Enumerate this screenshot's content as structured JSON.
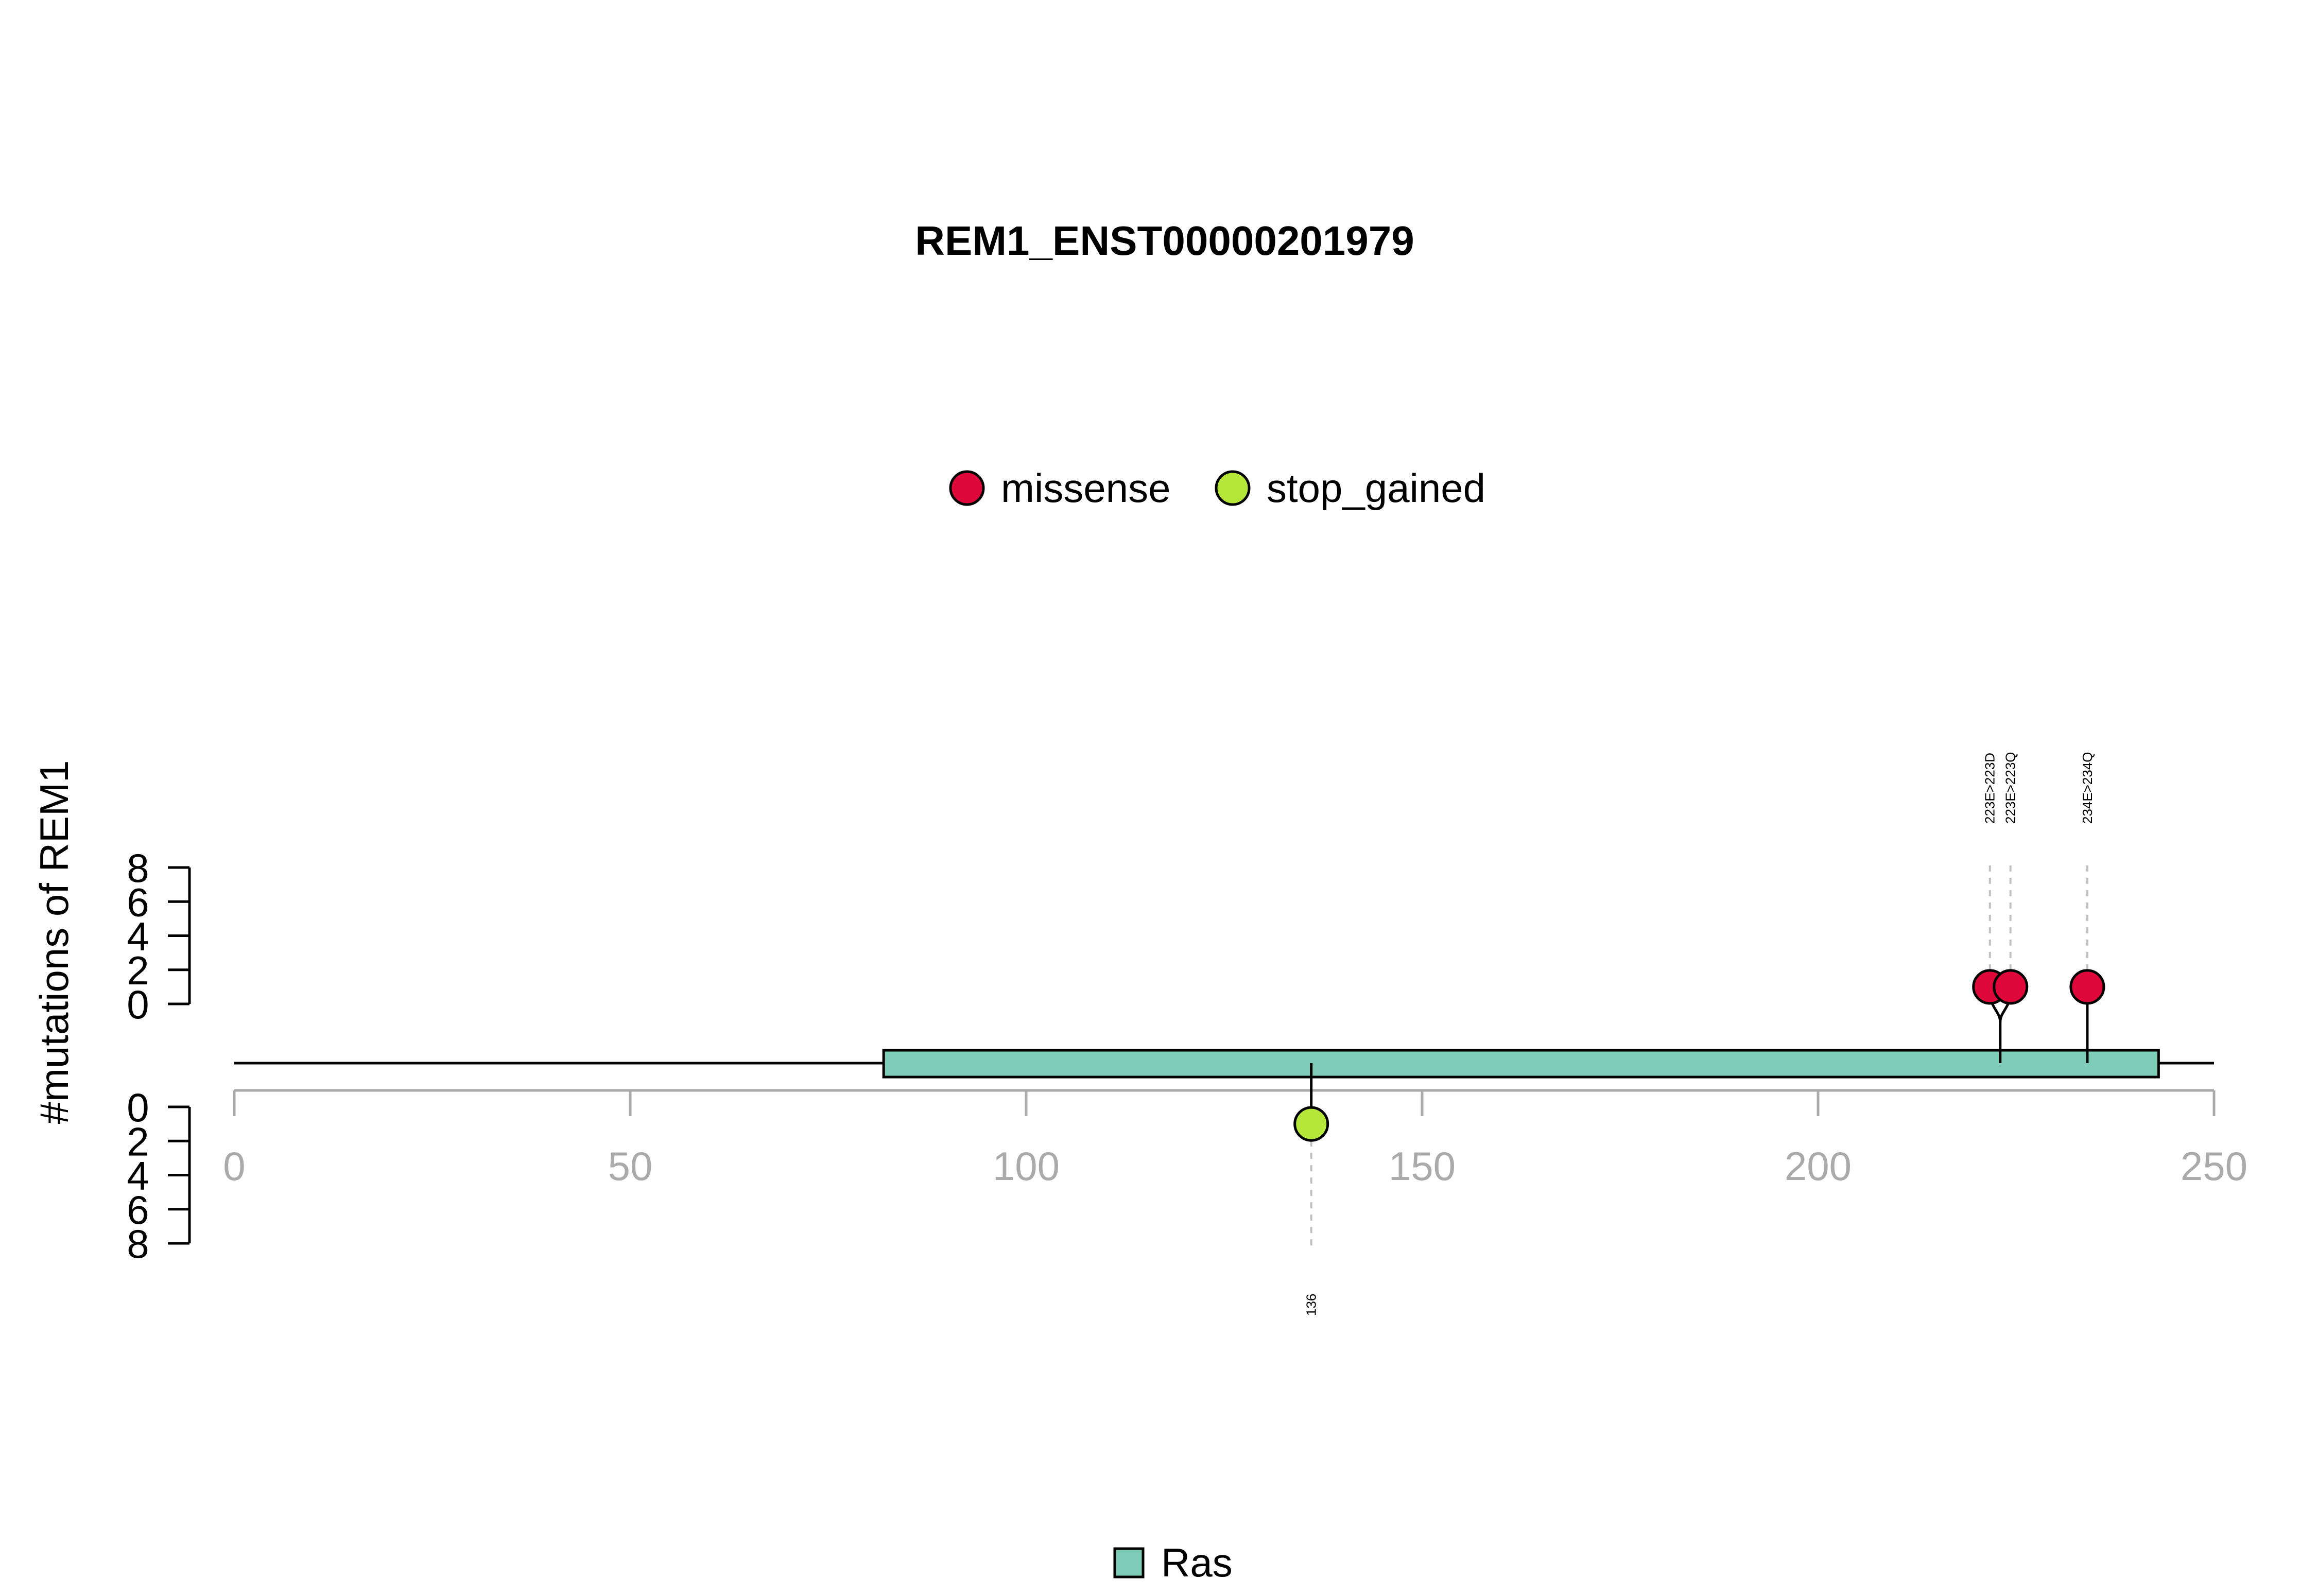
{
  "chart_data": {
    "type": "lollipop",
    "title": "REM1_ENST00000201979",
    "ylabel": "#mutations of REM1",
    "xlim": [
      0,
      250
    ],
    "x_ticks": [
      "0",
      "50",
      "100",
      "150",
      "200",
      "250"
    ],
    "upper_y_ticks": [
      "0",
      "2",
      "4",
      "6",
      "8"
    ],
    "lower_y_ticks": [
      "0",
      "2",
      "4",
      "6",
      "8"
    ],
    "ylim": [
      0,
      8
    ],
    "protein_length": 250,
    "mutation_legend": [
      {
        "label": "missense",
        "color": "#e0073a"
      },
      {
        "label": "stop_gained",
        "color": "#b5e73a"
      }
    ],
    "domains": [
      {
        "name": "Ras",
        "start": 82,
        "end": 243,
        "color": "#7ecbb7"
      }
    ],
    "domain_legend": [
      {
        "label": "Ras",
        "color": "#7ecbb7"
      }
    ],
    "mutations": [
      {
        "position": 223,
        "label": "223E>223D",
        "type": "missense",
        "count": 1,
        "side": "top"
      },
      {
        "position": 223,
        "label": "223E>223Q",
        "type": "missense",
        "count": 1,
        "side": "top"
      },
      {
        "position": 234,
        "label": "234E>234Q",
        "type": "missense",
        "count": 1,
        "side": "top"
      },
      {
        "position": 136,
        "label": "136",
        "type": "stop_gained",
        "count": 1,
        "side": "bottom"
      }
    ]
  }
}
